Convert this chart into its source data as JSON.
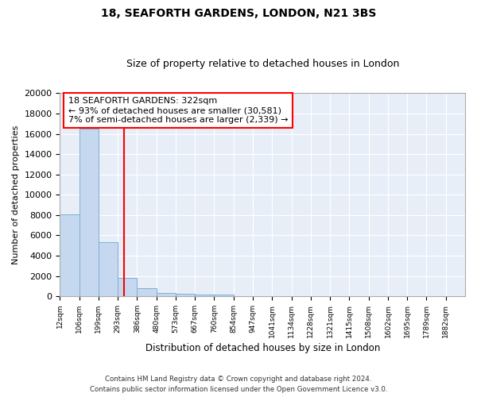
{
  "title1": "18, SEAFORTH GARDENS, LONDON, N21 3BS",
  "title2": "Size of property relative to detached houses in London",
  "xlabel": "Distribution of detached houses by size in London",
  "ylabel": "Number of detached properties",
  "bin_labels": [
    "12sqm",
    "106sqm",
    "199sqm",
    "293sqm",
    "386sqm",
    "480sqm",
    "573sqm",
    "667sqm",
    "760sqm",
    "854sqm",
    "947sqm",
    "1041sqm",
    "1134sqm",
    "1228sqm",
    "1321sqm",
    "1415sqm",
    "1508sqm",
    "1602sqm",
    "1695sqm",
    "1789sqm",
    "1882sqm"
  ],
  "bin_edges": [
    12,
    106,
    199,
    293,
    386,
    480,
    573,
    667,
    760,
    854,
    947,
    1041,
    1134,
    1228,
    1321,
    1415,
    1508,
    1602,
    1695,
    1789,
    1882
  ],
  "bar_heights": [
    8100,
    16500,
    5300,
    1850,
    800,
    350,
    250,
    200,
    200,
    0,
    0,
    0,
    0,
    0,
    0,
    0,
    0,
    0,
    0,
    0
  ],
  "bar_color": "#c5d8f0",
  "bar_edge_color": "#7bafd4",
  "red_line_x": 322,
  "annotation_title": "18 SEAFORTH GARDENS: 322sqm",
  "annotation_line1": "← 93% of detached houses are smaller (30,581)",
  "annotation_line2": "7% of semi-detached houses are larger (2,339) →",
  "ylim": [
    0,
    20000
  ],
  "yticks": [
    0,
    2000,
    4000,
    6000,
    8000,
    10000,
    12000,
    14000,
    16000,
    18000,
    20000
  ],
  "fig_bg_color": "#ffffff",
  "plot_bg_color": "#e8eef8",
  "grid_color": "#ffffff",
  "footnote1": "Contains HM Land Registry data © Crown copyright and database right 2024.",
  "footnote2": "Contains public sector information licensed under the Open Government Licence v3.0."
}
